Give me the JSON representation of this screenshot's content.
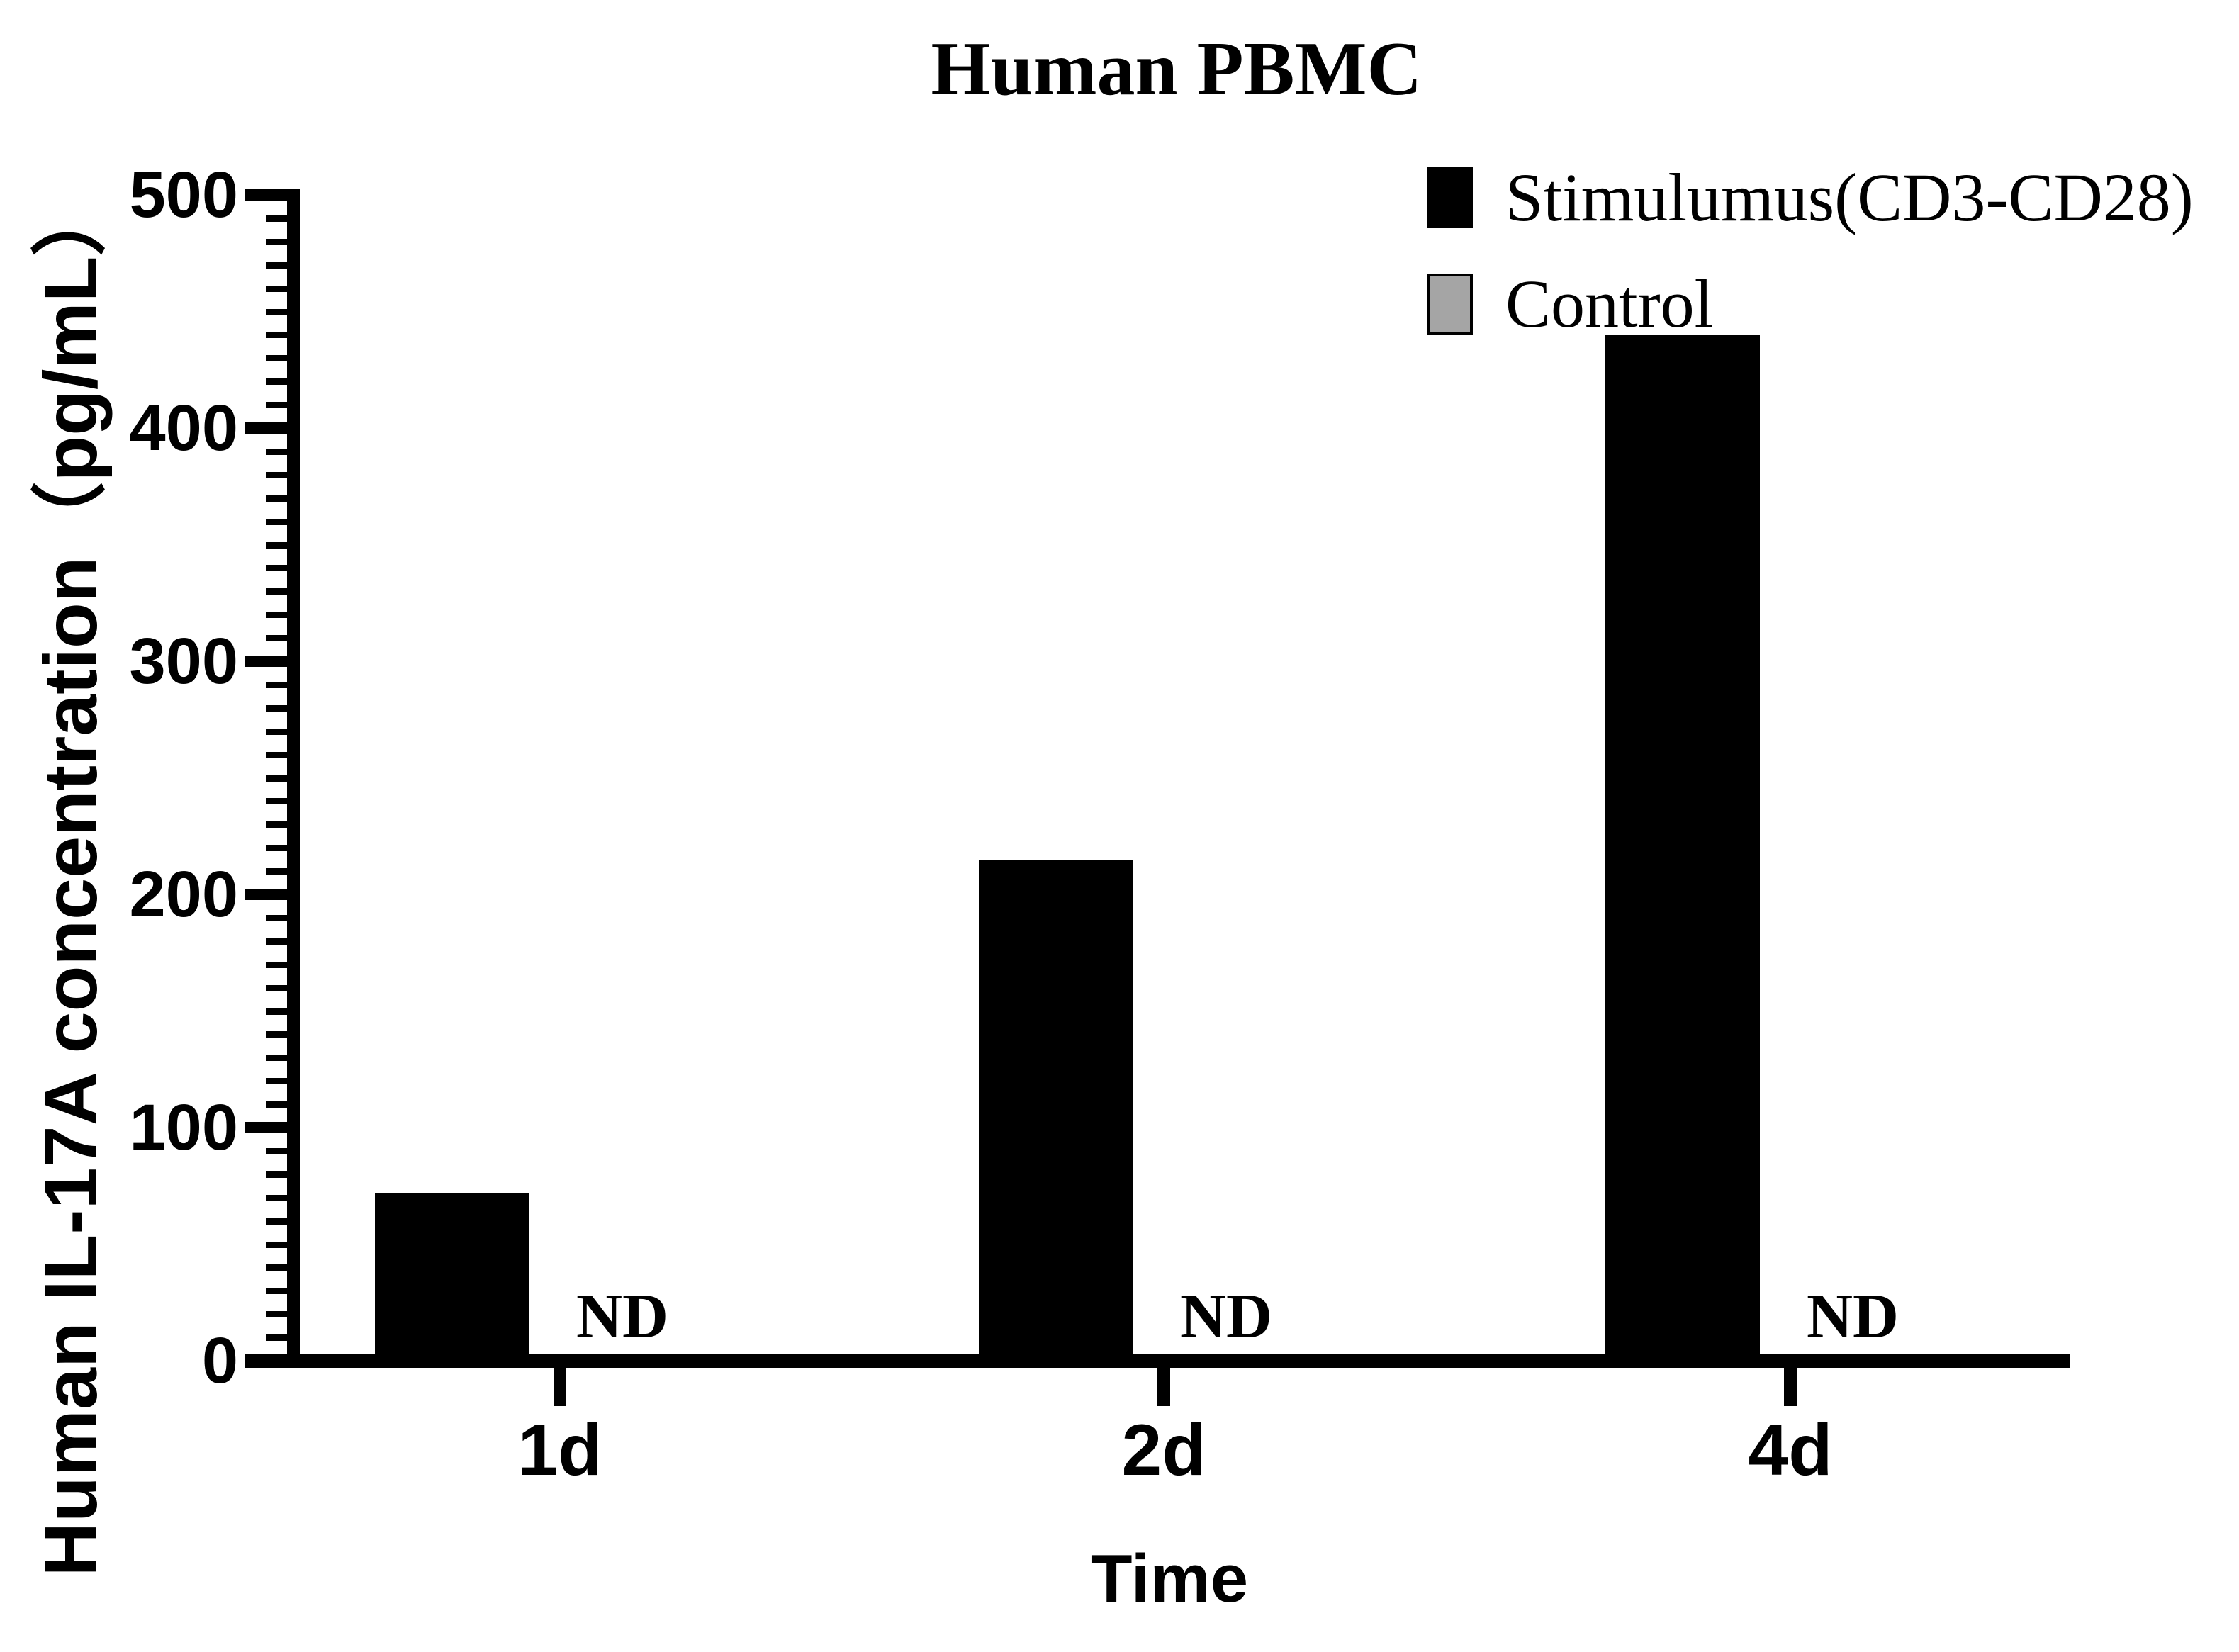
{
  "chart_data": {
    "type": "bar",
    "title": "Human PBMC",
    "xlabel": "Time",
    "ylabel": "Human IL-17A concentration（pg/mL）",
    "categories": [
      "1d",
      "2d",
      "4d"
    ],
    "series": [
      {
        "name": "Stimulumus(CD3-CD28)",
        "color": "#000000",
        "values": [
          72,
          215,
          440
        ]
      },
      {
        "name": "Control",
        "color": "#A5A5A5",
        "values": [
          null,
          null,
          null
        ],
        "value_labels": [
          "ND",
          "ND",
          "ND"
        ]
      }
    ],
    "ylim": [
      0,
      500
    ],
    "yticks": [
      0,
      100,
      200,
      300,
      400,
      500
    ],
    "ytick_interval": 100,
    "minor_tick_interval": 10,
    "grid": false,
    "legend_position": "top-right",
    "background": "#FFFFFF",
    "axis_color": "#000000"
  }
}
